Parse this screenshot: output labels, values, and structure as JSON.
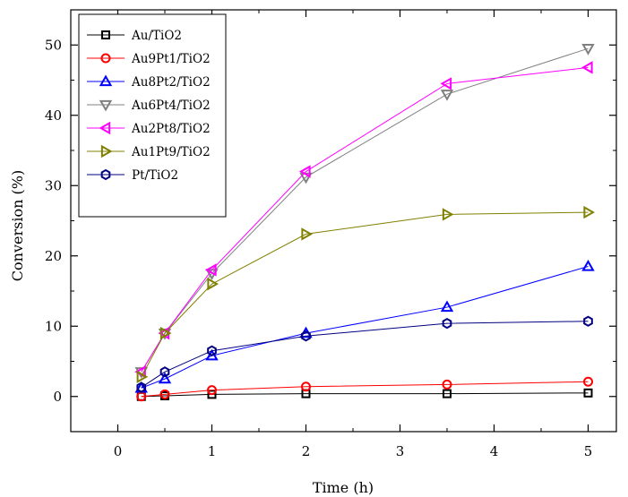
{
  "chart_data": {
    "type": "line",
    "title": "",
    "xlabel": "Time (h)",
    "ylabel": "Conversion (%)",
    "xlim": [
      -0.5,
      5.3
    ],
    "ylim": [
      -5,
      55
    ],
    "xticks": [
      0,
      1,
      2,
      3,
      4,
      5
    ],
    "yticks": [
      0,
      10,
      20,
      30,
      40,
      50
    ],
    "grid": false,
    "legend_position": "top-left",
    "x": [
      0.25,
      0.5,
      1,
      2,
      3.5,
      5
    ],
    "series": [
      {
        "name": "Au/TiO2",
        "color": "#000000",
        "marker": "square",
        "values": [
          0,
          0.1,
          0.3,
          0.4,
          0.4,
          0.5
        ]
      },
      {
        "name": "Au9Pt1/TiO2",
        "color": "#ff0000",
        "marker": "circle",
        "values": [
          0,
          0.3,
          0.9,
          1.4,
          1.7,
          2.1
        ]
      },
      {
        "name": "Au8Pt2/TiO2",
        "color": "#0000ff",
        "marker": "triangle-up",
        "values": [
          1.2,
          2.5,
          5.8,
          9.0,
          12.7,
          18.5
        ]
      },
      {
        "name": "Au6Pt4/TiO2",
        "color": "#808080",
        "marker": "triangle-down",
        "values": [
          3.5,
          9.0,
          17.5,
          31.2,
          43.0,
          49.5
        ]
      },
      {
        "name": "Au2Pt8/TiO2",
        "color": "#ff00ff",
        "marker": "triangle-left",
        "values": [
          3.5,
          9.0,
          18.0,
          32.0,
          44.5,
          46.8
        ]
      },
      {
        "name": "Au1Pt9/TiO2",
        "color": "#808000",
        "marker": "triangle-right",
        "values": [
          2.8,
          9.0,
          16.0,
          23.1,
          25.9,
          26.2
        ]
      },
      {
        "name": "Pt/TiO2",
        "color": "#000080",
        "marker": "hexagon",
        "values": [
          1.3,
          3.5,
          6.5,
          8.6,
          10.4,
          10.7
        ]
      }
    ]
  }
}
